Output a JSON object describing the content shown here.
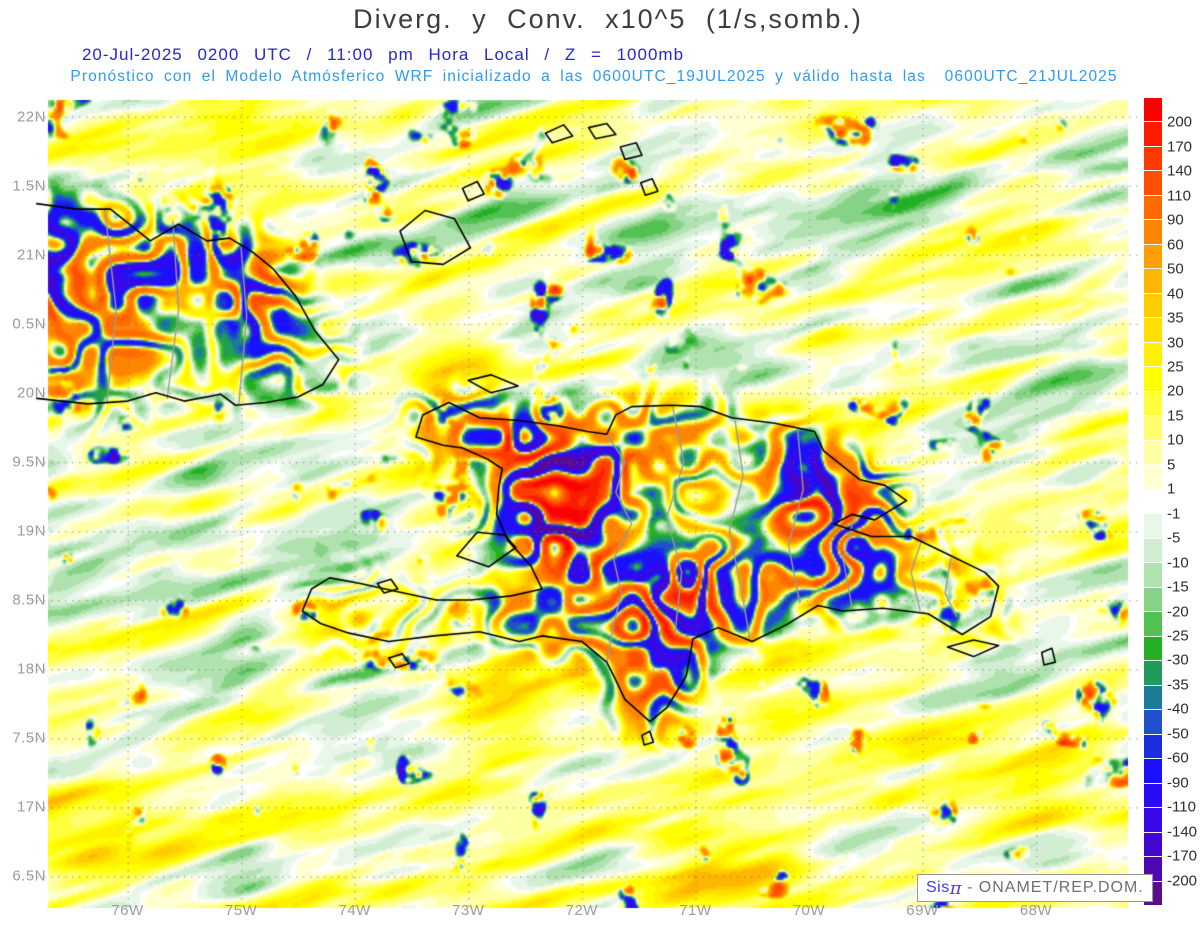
{
  "header": {
    "title": "Diverg. y Conv. x10^5 (1/s,somb.)",
    "subtitle1": "20-Jul-2025 0200 UTC / 11:00 pm Hora Local / Z = 1000mb",
    "subtitle2": "Pronóstico con el Modelo Atmósferico WRF inicializado a las 0600UTC_19JUL2025 y válido hasta las  0600UTC_21JUL2025"
  },
  "colors": {
    "title_text": "#3d3d3d",
    "subtitle1_text": "#2626d2",
    "subtitle2_text": "#2d9bf2",
    "axis_label": "#9c9c9c",
    "coastline": "#000000",
    "internal_border": "#9b9b9b",
    "grid_dot": "#6e6e6e"
  },
  "axes": {
    "y_labels": [
      "22N",
      "1.5N",
      "21N",
      "0.5N",
      "20N",
      "9.5N",
      "19N",
      "8.5N",
      "18N",
      "7.5N",
      "17N",
      "6.5N"
    ],
    "x_labels": [
      "76W",
      "75W",
      "74W",
      "73W",
      "72W",
      "71W",
      "70W",
      "69W",
      "68W"
    ]
  },
  "colorbar": {
    "levels_asc": [
      -200,
      -170,
      -140,
      -110,
      -90,
      -60,
      -50,
      -40,
      -35,
      -30,
      -25,
      -20,
      -15,
      -10,
      -5,
      -1,
      1,
      5,
      10,
      15,
      20,
      25,
      30,
      35,
      40,
      50,
      60,
      90,
      110,
      140,
      170,
      200
    ],
    "palette_asc": [
      "#5c0c8c",
      "#4e07b2",
      "#4407cf",
      "#3808e6",
      "#2b0bf5",
      "#1911fd",
      "#1c2de0",
      "#2050cd",
      "#1b7b99",
      "#219b5c",
      "#23b023",
      "#52c152",
      "#86d286",
      "#b0e2b0",
      "#d2eed2",
      "#e9f7e9",
      "#ffffff",
      "#ffffd2",
      "#ffffa3",
      "#ffff70",
      "#ffff3c",
      "#ffff00",
      "#fff100",
      "#ffdf00",
      "#ffcc00",
      "#ffb600",
      "#ff9e00",
      "#ff8500",
      "#ff6b00",
      "#ff5000",
      "#fe3a01",
      "#fd1b02",
      "#fb0202"
    ]
  },
  "watermark": {
    "sis": "Sis",
    "pi": "π",
    "rest": " - ONAMET/REP.DOM."
  },
  "map": {
    "geo": {
      "lon_left_w": 76.7,
      "lon_right_w": 67.19,
      "lat_top_n": 22.12,
      "lat_bottom_n": 16.27
    },
    "grid": {
      "lat_lines": [
        22,
        21.5,
        21,
        20.5,
        20,
        19.5,
        19,
        18.5,
        18,
        17.5,
        17,
        16.5
      ],
      "lon_lines": [
        76,
        75,
        74,
        73,
        72,
        71,
        70,
        69,
        68
      ]
    },
    "coastlines": {
      "cuba_east": [
        [
          76.8,
          21.37
        ],
        [
          76.45,
          21.33
        ],
        [
          76.15,
          21.33
        ],
        [
          75.95,
          21.2
        ],
        [
          75.8,
          21.1
        ],
        [
          75.55,
          21.22
        ],
        [
          75.3,
          21.1
        ],
        [
          75.1,
          21.12
        ],
        [
          74.9,
          21.02
        ],
        [
          74.72,
          20.9
        ],
        [
          74.52,
          20.7
        ],
        [
          74.35,
          20.45
        ],
        [
          74.14,
          20.24
        ],
        [
          74.28,
          20.06
        ],
        [
          74.5,
          19.97
        ],
        [
          74.78,
          19.93
        ],
        [
          75.05,
          19.91
        ],
        [
          75.18,
          19.99
        ],
        [
          75.5,
          19.94
        ],
        [
          75.75,
          20.0
        ],
        [
          76.0,
          19.94
        ],
        [
          76.35,
          19.92
        ],
        [
          76.8,
          19.96
        ]
      ],
      "hispaniola": [
        [
          73.4,
          19.84
        ],
        [
          73.17,
          19.93
        ],
        [
          72.9,
          19.82
        ],
        [
          72.55,
          19.8
        ],
        [
          72.2,
          19.76
        ],
        [
          71.95,
          19.72
        ],
        [
          71.78,
          19.7
        ],
        [
          71.7,
          19.84
        ],
        [
          71.56,
          19.9
        ],
        [
          71.2,
          19.91
        ],
        [
          70.95,
          19.9
        ],
        [
          70.68,
          19.82
        ],
        [
          70.3,
          19.78
        ],
        [
          69.95,
          19.72
        ],
        [
          69.87,
          19.58
        ],
        [
          69.55,
          19.37
        ],
        [
          69.33,
          19.33
        ],
        [
          69.14,
          19.22
        ],
        [
          69.42,
          19.08
        ],
        [
          69.62,
          19.12
        ],
        [
          69.78,
          19.05
        ],
        [
          69.45,
          18.96
        ],
        [
          69.1,
          18.96
        ],
        [
          68.75,
          18.82
        ],
        [
          68.45,
          18.7
        ],
        [
          68.33,
          18.6
        ],
        [
          68.4,
          18.38
        ],
        [
          68.65,
          18.25
        ],
        [
          68.95,
          18.4
        ],
        [
          69.35,
          18.44
        ],
        [
          69.7,
          18.42
        ],
        [
          69.92,
          18.46
        ],
        [
          70.2,
          18.32
        ],
        [
          70.5,
          18.2
        ],
        [
          70.8,
          18.3
        ],
        [
          71.02,
          18.22
        ],
        [
          71.08,
          17.95
        ],
        [
          71.25,
          17.72
        ],
        [
          71.4,
          17.62
        ],
        [
          71.62,
          17.78
        ],
        [
          71.7,
          17.92
        ],
        [
          71.78,
          18.05
        ],
        [
          72.0,
          18.2
        ],
        [
          72.35,
          18.24
        ],
        [
          72.55,
          18.2
        ],
        [
          72.9,
          18.27
        ],
        [
          73.3,
          18.24
        ],
        [
          73.7,
          18.2
        ],
        [
          74.05,
          18.26
        ],
        [
          74.3,
          18.33
        ],
        [
          74.46,
          18.42
        ],
        [
          74.38,
          18.58
        ],
        [
          74.22,
          18.66
        ],
        [
          73.95,
          18.62
        ],
        [
          73.62,
          18.56
        ],
        [
          73.28,
          18.5
        ],
        [
          72.98,
          18.5
        ],
        [
          72.62,
          18.53
        ],
        [
          72.35,
          18.58
        ],
        [
          72.45,
          18.75
        ],
        [
          72.65,
          18.93
        ],
        [
          72.75,
          19.12
        ],
        [
          72.73,
          19.32
        ],
        [
          72.7,
          19.45
        ],
        [
          72.83,
          19.52
        ],
        [
          73.05,
          19.6
        ],
        [
          73.22,
          19.62
        ],
        [
          73.46,
          19.68
        ]
      ],
      "gonave": [
        [
          73.1,
          18.82
        ],
        [
          72.92,
          18.99
        ],
        [
          72.68,
          18.97
        ],
        [
          72.58,
          18.88
        ],
        [
          72.82,
          18.74
        ]
      ],
      "tortue": [
        [
          73.0,
          20.09
        ],
        [
          72.8,
          20.13
        ],
        [
          72.56,
          20.05
        ],
        [
          72.8,
          20.0
        ]
      ],
      "great_inagua": [
        [
          73.6,
          21.17
        ],
        [
          73.38,
          21.32
        ],
        [
          73.12,
          21.26
        ],
        [
          72.98,
          21.05
        ],
        [
          73.22,
          20.93
        ],
        [
          73.5,
          20.95
        ]
      ],
      "little_inagua": [
        [
          73.05,
          21.48
        ],
        [
          72.92,
          21.53
        ],
        [
          72.86,
          21.44
        ],
        [
          73.0,
          21.39
        ]
      ],
      "caicos_1": [
        [
          72.32,
          21.88
        ],
        [
          72.16,
          21.94
        ],
        [
          72.08,
          21.86
        ],
        [
          72.26,
          21.81
        ]
      ],
      "caicos_2": [
        [
          71.94,
          21.92
        ],
        [
          71.78,
          21.95
        ],
        [
          71.7,
          21.87
        ],
        [
          71.88,
          21.84
        ]
      ],
      "caicos_3": [
        [
          71.66,
          21.78
        ],
        [
          71.52,
          21.81
        ],
        [
          71.47,
          21.72
        ],
        [
          71.62,
          21.69
        ]
      ],
      "turks": [
        [
          71.48,
          21.52
        ],
        [
          71.38,
          21.55
        ],
        [
          71.33,
          21.46
        ],
        [
          71.44,
          21.43
        ]
      ],
      "saona": [
        [
          68.78,
          18.16
        ],
        [
          68.55,
          18.21
        ],
        [
          68.33,
          18.17
        ],
        [
          68.55,
          18.09
        ]
      ],
      "mona": [
        [
          67.95,
          18.12
        ],
        [
          67.86,
          18.15
        ],
        [
          67.83,
          18.05
        ],
        [
          67.93,
          18.03
        ]
      ],
      "beata_islet": [
        [
          71.47,
          17.52
        ],
        [
          71.4,
          17.55
        ],
        [
          71.37,
          17.47
        ],
        [
          71.45,
          17.45
        ]
      ],
      "cayemites": [
        [
          73.8,
          18.62
        ],
        [
          73.68,
          18.65
        ],
        [
          73.62,
          18.58
        ],
        [
          73.74,
          18.55
        ]
      ],
      "ile_a_vache": [
        [
          73.7,
          18.08
        ],
        [
          73.58,
          18.11
        ],
        [
          73.52,
          18.04
        ],
        [
          73.64,
          18.01
        ]
      ]
    },
    "internal_borders": [
      [
        [
          71.78,
          19.7
        ],
        [
          71.62,
          19.5
        ],
        [
          71.7,
          19.28
        ],
        [
          71.56,
          19.05
        ],
        [
          71.72,
          18.8
        ],
        [
          71.65,
          18.55
        ],
        [
          71.72,
          18.32
        ],
        [
          71.78,
          18.05
        ]
      ],
      [
        [
          71.2,
          19.9
        ],
        [
          71.1,
          19.5
        ],
        [
          71.25,
          19.1
        ],
        [
          71.12,
          18.7
        ],
        [
          71.18,
          18.25
        ]
      ],
      [
        [
          70.65,
          19.8
        ],
        [
          70.58,
          19.4
        ],
        [
          70.7,
          19.0
        ],
        [
          70.6,
          18.6
        ],
        [
          70.52,
          18.22
        ]
      ],
      [
        [
          70.1,
          19.74
        ],
        [
          70.05,
          19.3
        ],
        [
          70.18,
          18.9
        ],
        [
          70.08,
          18.48
        ]
      ],
      [
        [
          69.6,
          19.1
        ],
        [
          69.7,
          18.8
        ],
        [
          69.62,
          18.45
        ]
      ],
      [
        [
          69.0,
          18.95
        ],
        [
          69.1,
          18.7
        ],
        [
          69.02,
          18.42
        ]
      ],
      [
        [
          68.75,
          18.8
        ],
        [
          68.8,
          18.55
        ],
        [
          68.7,
          18.38
        ]
      ],
      [
        [
          75.6,
          21.24
        ],
        [
          75.55,
          20.6
        ],
        [
          75.65,
          19.96
        ]
      ],
      [
        [
          75.0,
          21.05
        ],
        [
          74.95,
          20.55
        ],
        [
          75.02,
          19.92
        ]
      ],
      [
        [
          76.2,
          21.33
        ],
        [
          76.1,
          20.6
        ],
        [
          76.18,
          19.93
        ]
      ]
    ]
  }
}
